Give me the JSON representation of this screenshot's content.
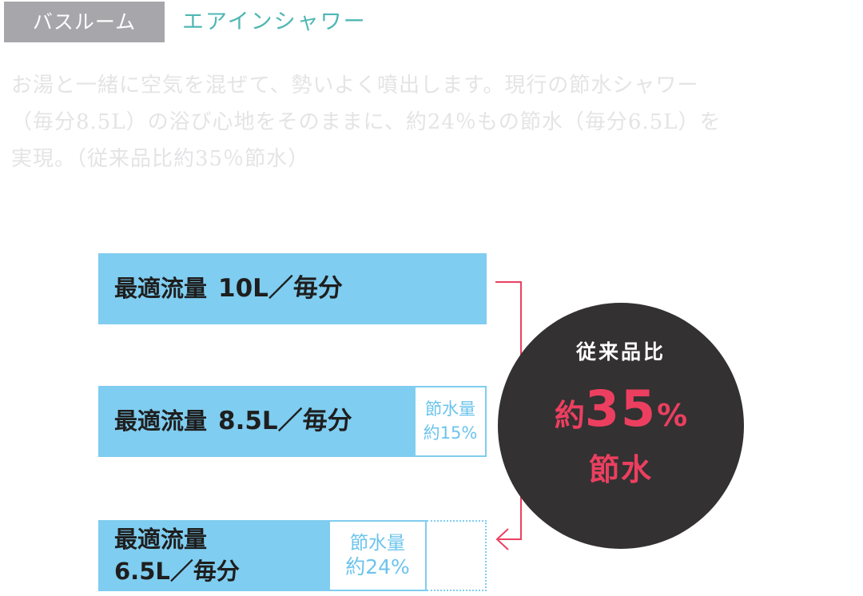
{
  "header": {
    "category": "バスルーム",
    "product": "エアインシャワー"
  },
  "description": {
    "lines": [
      "お湯と一緒に空気を混ぜて、勢いよく噴出します。現行の節水シャワー",
      "（毎分8.5L）の浴び心地をそのままに、約24％もの節水（毎分6.5L）を",
      "実現。（従来品比約35％節水）"
    ]
  },
  "bars": [
    {
      "name": "最適流量",
      "value": "10L／毎分"
    },
    {
      "name": "最適流量",
      "value": "8.5L／毎分",
      "save_label": "節水量",
      "save_value": "約15%"
    },
    {
      "name": "最適流量",
      "value": "6.5L／毎分",
      "save_label": "節水量",
      "save_value": "約24%"
    }
  ],
  "circle": {
    "label": "従来品比",
    "prefix": "約",
    "number": "35",
    "percent": "%",
    "sub": "節水"
  },
  "colors": {
    "bar": "#7fcdf0",
    "accent": "#ec3f60",
    "circle": "#333132",
    "title": "#4fb7b4",
    "category_bg": "#a6a6ab"
  }
}
